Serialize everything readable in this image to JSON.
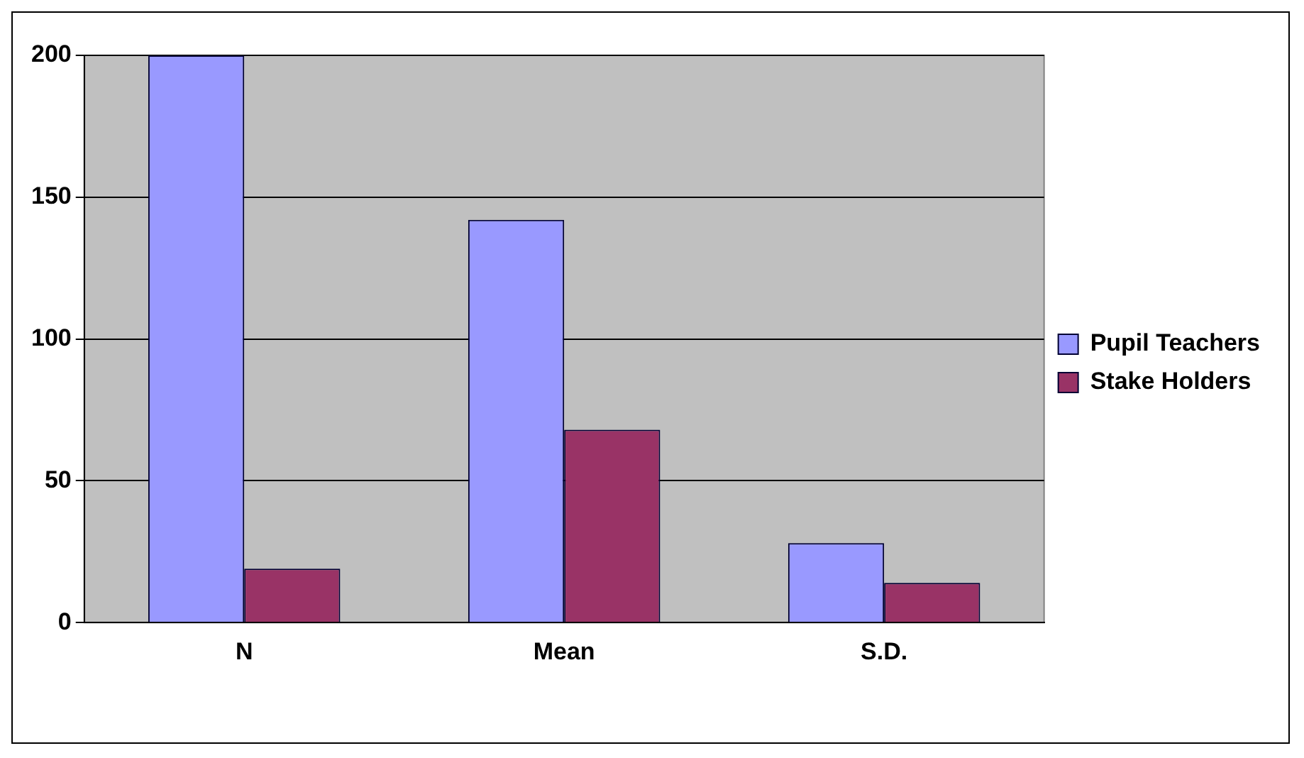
{
  "chart_data": {
    "type": "bar",
    "categories": [
      "N",
      "Mean",
      "S.D."
    ],
    "series": [
      {
        "name": "Pupil Teachers",
        "color": "#9999ff",
        "values": [
          200,
          142,
          28
        ]
      },
      {
        "name": "Stake Holders",
        "color": "#993366",
        "values": [
          19,
          68,
          14
        ]
      }
    ],
    "ylim": [
      0,
      200
    ],
    "yticks": [
      0,
      50,
      100,
      150,
      200
    ],
    "grid": "y",
    "legend": "right"
  }
}
